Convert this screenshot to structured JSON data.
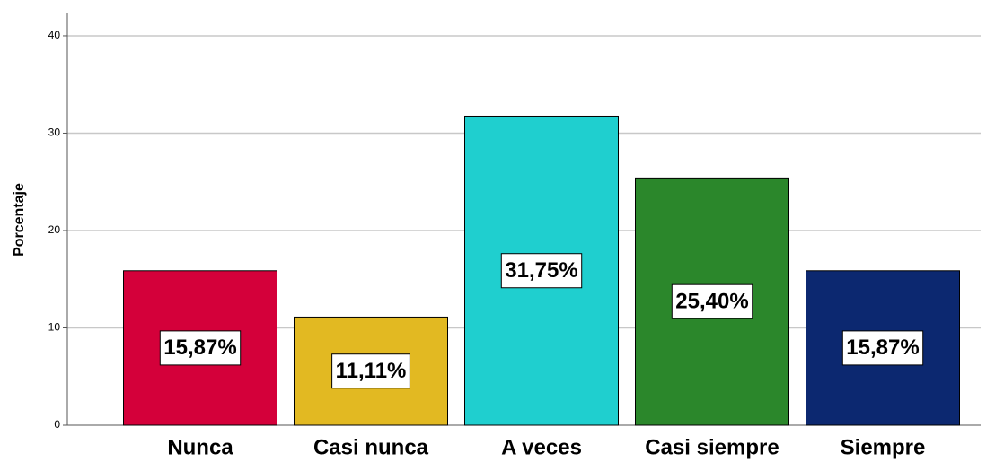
{
  "chart_data": {
    "type": "bar",
    "y_label": "Porcentaje",
    "categories": [
      "Nunca",
      "Casi nunca",
      "A veces",
      "Casi siempre",
      "Siempre"
    ],
    "values": [
      15.87,
      11.11,
      31.75,
      25.4,
      15.87
    ],
    "value_labels": [
      "15,87%",
      "11,11%",
      "31,75%",
      "25,40%",
      "15,87%"
    ],
    "colors": [
      "#d4003a",
      "#e2b922",
      "#1fcfcf",
      "#2b872b",
      "#0c2870"
    ],
    "ylim": [
      0,
      42.3
    ],
    "yticks": [
      0,
      10,
      20,
      30,
      40
    ],
    "grid": true
  }
}
